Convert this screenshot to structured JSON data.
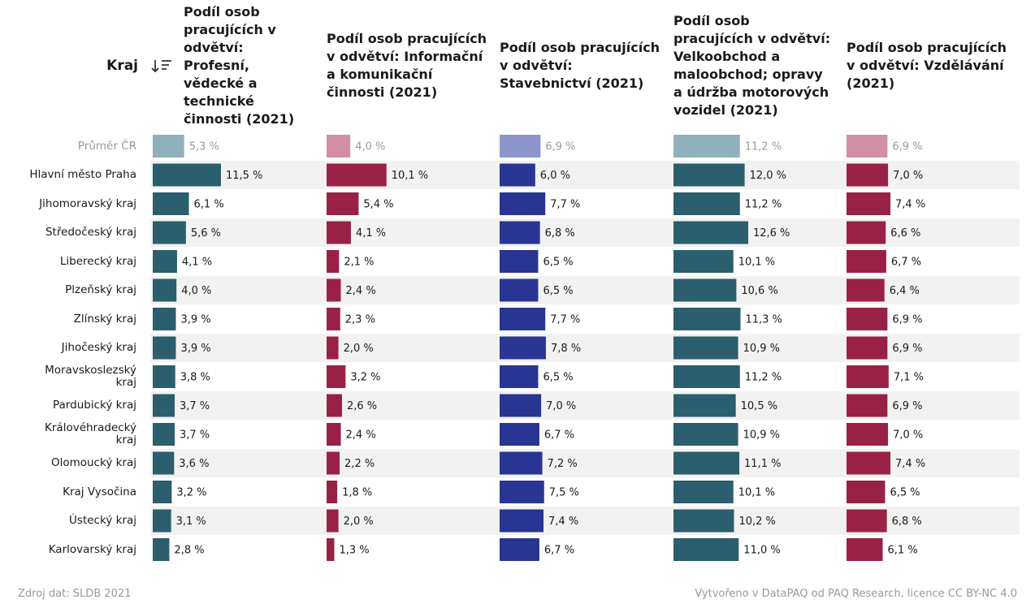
{
  "chart_data": {
    "type": "bar",
    "category_label": "Kraj",
    "categories": [
      "Průměr ČR",
      "Hlavní město Praha",
      "Jihomoravský kraj",
      "Středočeský kraj",
      "Liberecký kraj",
      "Plzeňský kraj",
      "Zlínský kraj",
      "Jihočeský kraj",
      "Moravskoslezský kraj",
      "Pardubický kraj",
      "Královéhradecký kraj",
      "Olomoucký kraj",
      "Kraj Vysočina",
      "Ústecký kraj",
      "Karlovarský kraj"
    ],
    "series": [
      {
        "name": "Podíl osob pracujících v odvětví: Profesní, vědecké a technické činnosti (2021)",
        "color": "#2b5e6e",
        "average_color": "#8fb1bc",
        "values": [
          5.3,
          11.5,
          6.1,
          5.6,
          4.1,
          4.0,
          3.9,
          3.9,
          3.8,
          3.7,
          3.7,
          3.6,
          3.2,
          3.1,
          2.8
        ],
        "value_labels": [
          "5,3 %",
          "11,5 %",
          "6,1 %",
          "5,6 %",
          "4,1 %",
          "4,0 %",
          "3,9 %",
          "3,9 %",
          "3,8 %",
          "3,7 %",
          "3,7 %",
          "3,6 %",
          "3,2 %",
          "3,1 %",
          "2,8 %"
        ]
      },
      {
        "name": "Podíl osob pracujících v odvětví: Informační a komunikační činnosti (2021)",
        "color": "#9a2146",
        "average_color": "#d08fa2",
        "values": [
          4.0,
          10.1,
          5.4,
          4.1,
          2.1,
          2.4,
          2.3,
          2.0,
          3.2,
          2.6,
          2.4,
          2.2,
          1.8,
          2.0,
          1.3
        ],
        "value_labels": [
          "4,0 %",
          "10,1 %",
          "5,4 %",
          "4,1 %",
          "2,1 %",
          "2,4 %",
          "2,3 %",
          "2,0 %",
          "3,2 %",
          "2,6 %",
          "2,4 %",
          "2,2 %",
          "1,8 %",
          "2,0 %",
          "1,3 %"
        ]
      },
      {
        "name": "Podíl osob pracujících v odvětví: Stavebnictví (2021)",
        "color": "#283592",
        "average_color": "#8e96c9",
        "values": [
          6.9,
          6.0,
          7.7,
          6.8,
          6.5,
          6.5,
          7.7,
          7.8,
          6.5,
          7.0,
          6.7,
          7.2,
          7.5,
          7.4,
          6.7
        ],
        "value_labels": [
          "6,9 %",
          "6,0 %",
          "7,7 %",
          "6,8 %",
          "6,5 %",
          "6,5 %",
          "7,7 %",
          "7,8 %",
          "6,5 %",
          "7,0 %",
          "6,7 %",
          "7,2 %",
          "7,5 %",
          "7,4 %",
          "6,7 %"
        ]
      },
      {
        "name": "Podíl osob pracujících v odvětví: Velkoobchod a maloobchod; opravy a údržba motorových vozidel (2021)",
        "color": "#2b5e6e",
        "average_color": "#8fb1bc",
        "values": [
          11.2,
          12.0,
          11.2,
          12.6,
          10.1,
          10.6,
          11.3,
          10.9,
          11.2,
          10.5,
          10.9,
          11.1,
          10.1,
          10.2,
          11.0
        ],
        "value_labels": [
          "11,2 %",
          "12,0 %",
          "11,2 %",
          "12,6 %",
          "10,1 %",
          "10,6 %",
          "11,3 %",
          "10,9 %",
          "11,2 %",
          "10,5 %",
          "10,9 %",
          "11,1 %",
          "10,1 %",
          "10,2 %",
          "11,0 %"
        ]
      },
      {
        "name": "Podíl osob pracujících v odvětví: Vzdělávání (2021)",
        "color": "#9a2146",
        "average_color": "#d08fa2",
        "values": [
          6.9,
          7.0,
          7.4,
          6.6,
          6.7,
          6.4,
          6.9,
          6.9,
          7.1,
          6.9,
          7.0,
          7.4,
          6.5,
          6.8,
          6.1
        ],
        "value_labels": [
          "6,9 %",
          "7,0 %",
          "7,4 %",
          "6,6 %",
          "6,7 %",
          "6,4 %",
          "6,9 %",
          "6,9 %",
          "7,1 %",
          "6,9 %",
          "7,0 %",
          "7,4 %",
          "6,5 %",
          "6,8 %",
          "6,1 %"
        ]
      }
    ],
    "source": "Zdroj dat: SLDB 2021",
    "credit": "Vytvořeno v DataPAQ od PAQ Research, licence CC BY-NC 4.0"
  }
}
